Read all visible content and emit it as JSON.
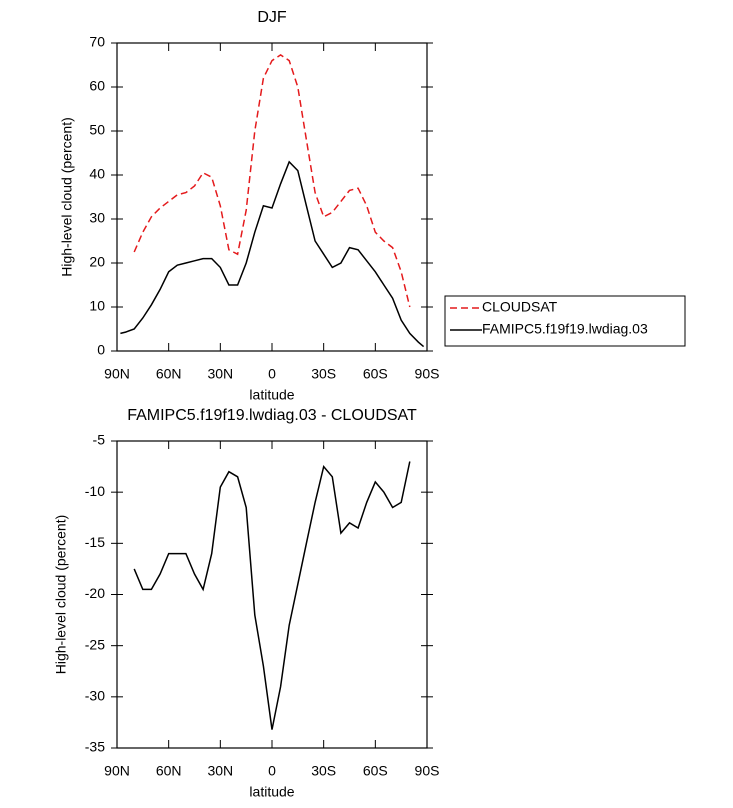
{
  "chart_data": [
    {
      "type": "line",
      "title": "DJF",
      "xlabel": "latitude",
      "ylabel": "High-level cloud (percent)",
      "xlim": [
        90,
        -90
      ],
      "xticks": [
        {
          "value": 90,
          "label": "90N"
        },
        {
          "value": 60,
          "label": "60N"
        },
        {
          "value": 30,
          "label": "30N"
        },
        0,
        {
          "value": -30,
          "label": "30S"
        },
        {
          "value": -60,
          "label": "60S"
        },
        {
          "value": -90,
          "label": "90S"
        }
      ],
      "ylim": [
        0,
        70
      ],
      "yticks": [
        0,
        10,
        20,
        30,
        40,
        50,
        60,
        70
      ],
      "legend": "right",
      "series": [
        {
          "name": "CLOUDSAT",
          "color": "#e41a1c",
          "line_style": "dashed",
          "x": [
            80,
            75,
            70,
            65,
            60,
            55,
            50,
            45,
            40,
            35,
            30,
            25,
            20,
            15,
            10,
            5,
            0,
            -5,
            -10,
            -15,
            -20,
            -25,
            -30,
            -35,
            -40,
            -45,
            -50,
            -55,
            -60,
            -65,
            -70,
            -75,
            -80
          ],
          "values": [
            22.5,
            27,
            30.5,
            32.5,
            34,
            35.5,
            36,
            37.5,
            40.5,
            39.5,
            33,
            23,
            22,
            32,
            50,
            62,
            66,
            67.3,
            66,
            60,
            48,
            36,
            30.5,
            31.5,
            34,
            36.5,
            37,
            33,
            27,
            25,
            23.5,
            18,
            10
          ]
        },
        {
          "name": "FAMIPC5.f19f19.lwdiag.03",
          "color": "#000000",
          "line_style": "solid",
          "x": [
            88,
            85,
            80,
            75,
            70,
            65,
            60,
            55,
            50,
            45,
            40,
            35,
            30,
            25,
            20,
            15,
            10,
            5,
            0,
            -5,
            -10,
            -15,
            -20,
            -25,
            -30,
            -35,
            -40,
            -45,
            -50,
            -55,
            -60,
            -65,
            -70,
            -75,
            -80,
            -85,
            -88
          ],
          "values": [
            4,
            4.3,
            5,
            7.5,
            10.5,
            14,
            18,
            19.5,
            20,
            20.5,
            21,
            21,
            19,
            15,
            15,
            20,
            27,
            33,
            32.5,
            38,
            43,
            41,
            33,
            25,
            22,
            19,
            20,
            23.5,
            23,
            20.5,
            18,
            15,
            12,
            7,
            4,
            2,
            1
          ]
        }
      ]
    },
    {
      "type": "line",
      "title": "FAMIPC5.f19f19.lwdiag.03 - CLOUDSAT",
      "xlabel": "latitude",
      "ylabel": "High-level cloud (percent)",
      "xlim": [
        90,
        -90
      ],
      "xticks": [
        {
          "value": 90,
          "label": "90N"
        },
        {
          "value": 60,
          "label": "60N"
        },
        {
          "value": 30,
          "label": "30N"
        },
        0,
        {
          "value": -30,
          "label": "30S"
        },
        {
          "value": -60,
          "label": "60S"
        },
        {
          "value": -90,
          "label": "90S"
        }
      ],
      "ylim": [
        -35,
        -5
      ],
      "yticks": [
        -35,
        -30,
        -25,
        -20,
        -15,
        -10,
        -5
      ],
      "series": [
        {
          "color": "#000000",
          "line_style": "solid",
          "x": [
            80,
            75,
            70,
            65,
            60,
            55,
            50,
            45,
            40,
            35,
            30,
            25,
            20,
            15,
            10,
            5,
            0,
            -5,
            -10,
            -15,
            -20,
            -25,
            -30,
            -35,
            -40,
            -45,
            -50,
            -55,
            -60,
            -65,
            -70,
            -75,
            -80
          ],
          "values": [
            -17.5,
            -19.5,
            -19.5,
            -18,
            -16,
            -16,
            -16,
            -18,
            -19.5,
            -16,
            -9.5,
            -8,
            -8.5,
            -11.5,
            -22,
            -27,
            -33.2,
            -29,
            -23,
            -19,
            -15,
            -11,
            -7.5,
            -8.5,
            -14,
            -13,
            -13.5,
            -11,
            -9,
            -10,
            -11.5,
            -11,
            -7
          ]
        }
      ]
    }
  ]
}
